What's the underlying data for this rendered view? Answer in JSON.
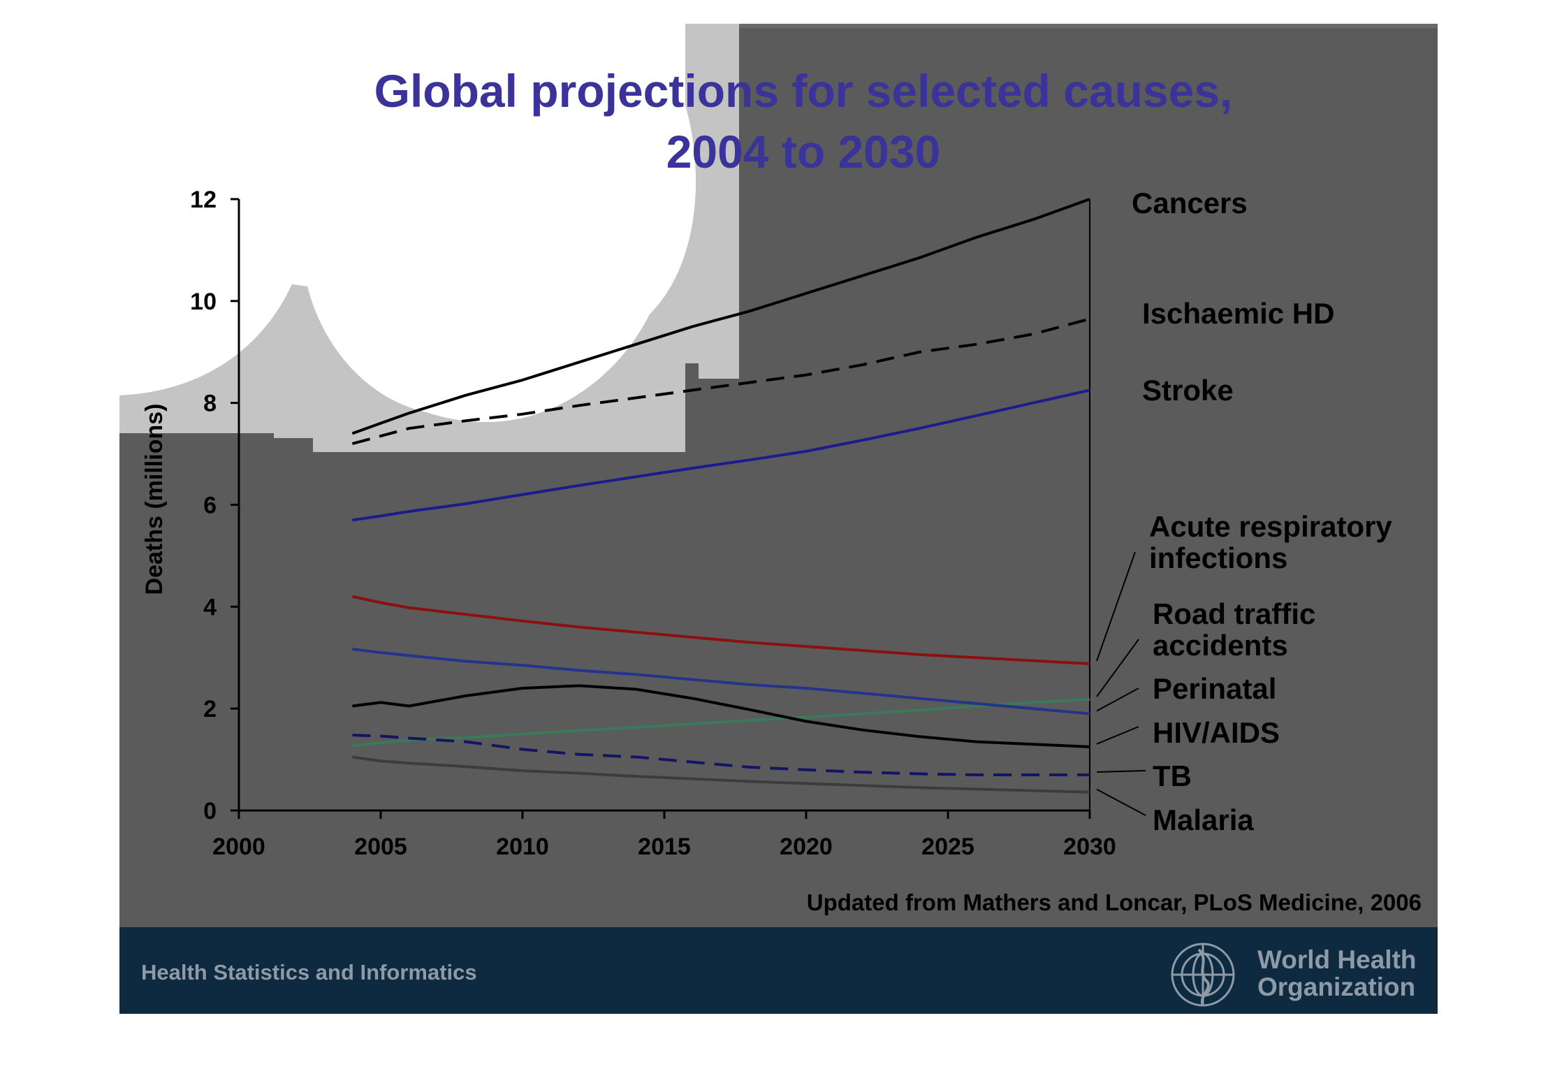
{
  "slide": {
    "title_line1": "Global projections for selected causes,",
    "title_line2": "2004 to 2030",
    "source": "Updated from Mathers and Loncar, PLoS Medicine, 2006",
    "footer_left": "Health Statistics and Informatics",
    "footer_org_line1": "World Health",
    "footer_org_line2": "Organization",
    "colors": {
      "title": "#3a3399",
      "panel": "#5b5b5b",
      "footer": "#0e2a40",
      "light_shape": "#c4c4c4"
    }
  },
  "chart_data": {
    "type": "line",
    "title": "Global projections for selected causes, 2004 to 2030",
    "ylabel": "Deaths (millions)",
    "xlabel": "",
    "xlim": [
      2000,
      2030
    ],
    "ylim": [
      0,
      12
    ],
    "xticks": [
      2000,
      2005,
      2010,
      2015,
      2020,
      2025,
      2030
    ],
    "yticks": [
      0,
      2,
      4,
      6,
      8,
      10,
      12
    ],
    "x": [
      2004,
      2005,
      2006,
      2008,
      2010,
      2012,
      2014,
      2016,
      2018,
      2020,
      2022,
      2024,
      2026,
      2028,
      2030
    ],
    "series": [
      {
        "name": "Cancers",
        "label_lines": [
          "Cancers"
        ],
        "color": "#000000",
        "dash": false,
        "values": [
          7.4,
          7.6,
          7.8,
          8.15,
          8.45,
          8.8,
          9.15,
          9.5,
          9.8,
          10.15,
          10.5,
          10.85,
          11.25,
          11.6,
          12.0
        ]
      },
      {
        "name": "Ischaemic HD",
        "label_lines": [
          "Ischaemic HD"
        ],
        "color": "#000000",
        "dash": true,
        "values": [
          7.2,
          7.35,
          7.5,
          7.65,
          7.78,
          7.95,
          8.1,
          8.25,
          8.4,
          8.55,
          8.75,
          9.0,
          9.15,
          9.35,
          9.65
        ]
      },
      {
        "name": "Stroke",
        "label_lines": [
          "Stroke"
        ],
        "color": "#1c1c8c",
        "dash": false,
        "values": [
          5.7,
          5.78,
          5.87,
          6.02,
          6.2,
          6.38,
          6.55,
          6.72,
          6.88,
          7.05,
          7.27,
          7.5,
          7.75,
          8.0,
          8.25
        ]
      },
      {
        "name": "Acute respiratory infections",
        "label_lines": [
          "Acute respiratory",
          "infections"
        ],
        "color": "#8b1010",
        "dash": false,
        "values": [
          4.2,
          4.08,
          3.98,
          3.85,
          3.72,
          3.6,
          3.5,
          3.4,
          3.3,
          3.22,
          3.14,
          3.06,
          3.0,
          2.94,
          2.88
        ]
      },
      {
        "name": "Road traffic accidents",
        "label_lines": [
          "Road traffic",
          "accidents"
        ],
        "color": "#3a7a5a",
        "dash": false,
        "values": [
          1.27,
          1.33,
          1.38,
          1.43,
          1.5,
          1.57,
          1.63,
          1.7,
          1.77,
          1.83,
          1.9,
          1.97,
          2.05,
          2.12,
          2.18
        ]
      },
      {
        "name": "Perinatal",
        "label_lines": [
          "Perinatal"
        ],
        "color": "#23348a",
        "dash": false,
        "values": [
          3.17,
          3.1,
          3.04,
          2.93,
          2.85,
          2.75,
          2.67,
          2.57,
          2.47,
          2.4,
          2.3,
          2.2,
          2.1,
          2.0,
          1.9
        ]
      },
      {
        "name": "HIV/AIDS",
        "label_lines": [
          "HIV/AIDS"
        ],
        "color": "#000000",
        "dash": false,
        "values": [
          2.05,
          2.12,
          2.05,
          2.25,
          2.4,
          2.45,
          2.38,
          2.2,
          1.98,
          1.75,
          1.58,
          1.45,
          1.35,
          1.3,
          1.25
        ]
      },
      {
        "name": "TB",
        "label_lines": [
          "TB"
        ],
        "color": "#141466",
        "dash": true,
        "values": [
          1.48,
          1.46,
          1.42,
          1.35,
          1.2,
          1.1,
          1.05,
          0.95,
          0.85,
          0.8,
          0.75,
          0.72,
          0.7,
          0.7,
          0.7
        ]
      },
      {
        "name": "Malaria",
        "label_lines": [
          "Malaria"
        ],
        "color": "#3c3c3c",
        "dash": false,
        "values": [
          1.05,
          0.97,
          0.93,
          0.86,
          0.78,
          0.73,
          0.67,
          0.62,
          0.57,
          0.53,
          0.49,
          0.45,
          0.42,
          0.39,
          0.36
        ]
      }
    ]
  }
}
